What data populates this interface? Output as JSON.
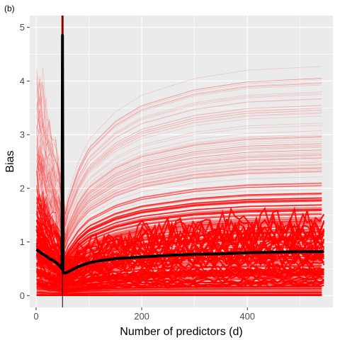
{
  "chart_data": {
    "type": "line",
    "panel_tag": "(b)",
    "xlabel": "Number of predictors (d)",
    "ylabel": "Bias",
    "xlim": [
      -12,
      562
    ],
    "ylim": [
      -0.22,
      5.22
    ],
    "x_ticks": [
      0,
      200,
      400
    ],
    "y_ticks": [
      0,
      1,
      2,
      3,
      4,
      5
    ],
    "x_tick_labels": [
      "0",
      "200",
      "400"
    ],
    "y_tick_labels": [
      "0",
      "1",
      "2",
      "3",
      "4",
      "5"
    ],
    "grid": true,
    "legend": "none",
    "vertical_line": {
      "x": 50,
      "color": "#000000"
    },
    "colors": {
      "panel_bg": "#EBEBEB",
      "grid": "#FFFFFF",
      "fan_lines": "#FF0000",
      "mean_line": "#000000"
    },
    "series": [
      {
        "role": "mean",
        "x": [
          1,
          5,
          10,
          15,
          20,
          25,
          30,
          35,
          40,
          45,
          49,
          50,
          51,
          55,
          60,
          70,
          80,
          100,
          120,
          150,
          200,
          250,
          300,
          350,
          400,
          450,
          500,
          545
        ],
        "values": [
          0.86,
          0.83,
          0.79,
          0.76,
          0.73,
          0.69,
          0.67,
          0.64,
          0.6,
          0.55,
          0.5,
          4.85,
          0.43,
          0.42,
          0.44,
          0.49,
          0.54,
          0.61,
          0.65,
          0.69,
          0.72,
          0.75,
          0.77,
          0.78,
          0.8,
          0.81,
          0.82,
          0.82
        ]
      }
    ],
    "envelope": {
      "x": [
        1,
        10,
        20,
        30,
        40,
        48,
        52,
        60,
        80,
        100,
        150,
        200,
        300,
        400,
        545
      ],
      "upper": [
        4.0,
        3.7,
        3.3,
        2.95,
        2.6,
        2.4,
        1.4,
        1.8,
        2.4,
        2.8,
        3.3,
        3.6,
        3.9,
        4.05,
        4.12
      ]
    }
  }
}
